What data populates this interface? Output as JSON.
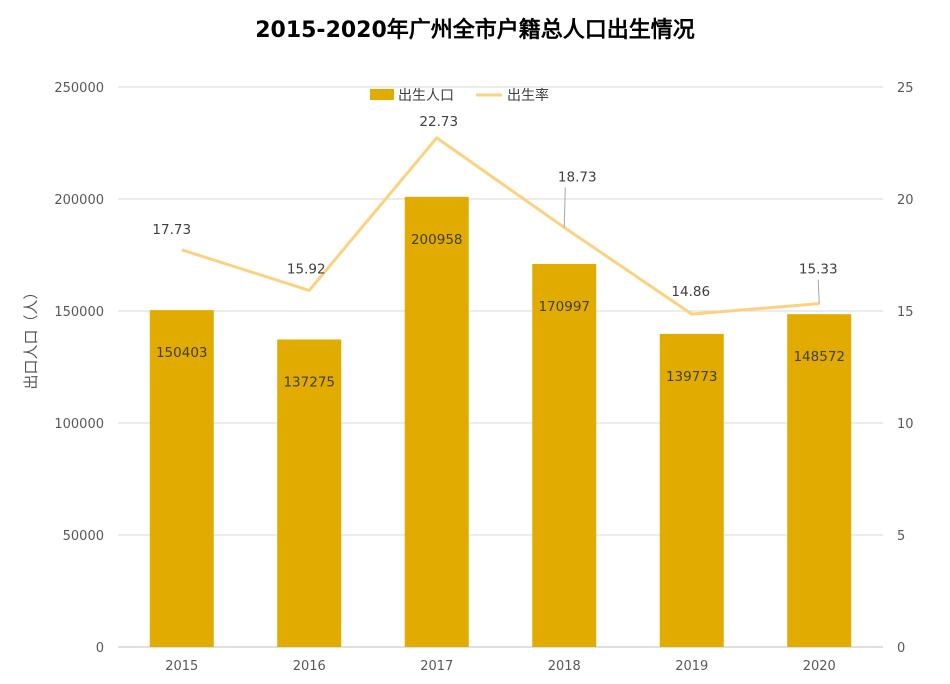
{
  "chart_data": {
    "type": "bar",
    "title": "2015-2020年广州全市户籍总人口出生情况",
    "categories": [
      "2015",
      "2016",
      "2017",
      "2018",
      "2019",
      "2020"
    ],
    "series": [
      {
        "name": "出生人口",
        "type": "bar",
        "axis": "left",
        "color": "#E1AB00",
        "values": [
          150403,
          137275,
          200958,
          170997,
          139773,
          148572
        ]
      },
      {
        "name": "出生率",
        "type": "line",
        "axis": "right",
        "color": "#FBD27F",
        "values": [
          17.73,
          15.92,
          22.73,
          18.73,
          14.86,
          15.33
        ]
      }
    ],
    "ylabel": "出口人口（人）",
    "ylabel_right": "",
    "xlabel": "",
    "ylim": [
      0,
      250000
    ],
    "yticks": [
      "0",
      "50000",
      "100000",
      "150000",
      "200000",
      "250000"
    ],
    "ylim_right": [
      0,
      25
    ],
    "yticks_right": [
      "0",
      "5",
      "10",
      "15",
      "20",
      "25"
    ],
    "grid": true,
    "legend_position": "top-center"
  }
}
